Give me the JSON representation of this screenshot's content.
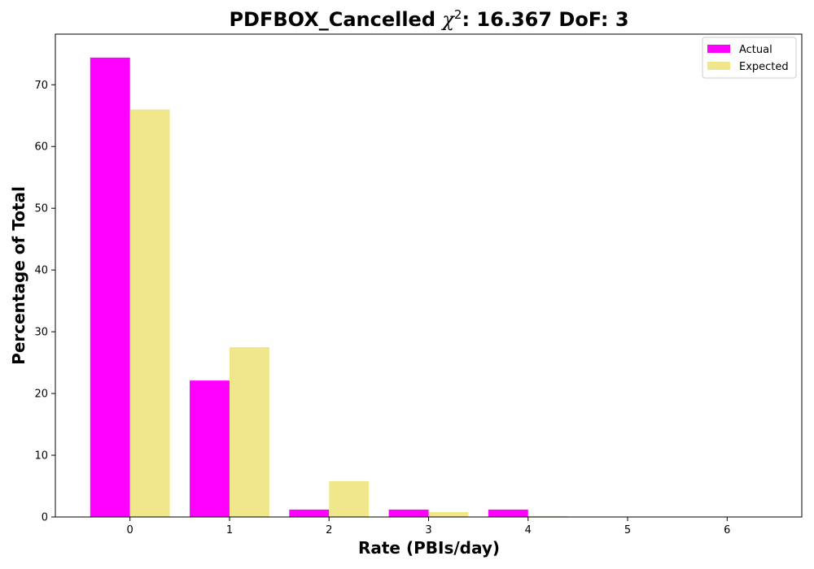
{
  "chart_data": {
    "type": "bar",
    "title_prefix": "PDFBOX_Cancelled ",
    "title_chi": "χ",
    "title_sup": "2",
    "title_suffix": ": 16.367 DoF: 3",
    "xlabel": "Rate (PBIs/day)",
    "ylabel": "Percentage of Total",
    "categories": [
      "0",
      "1",
      "2",
      "3",
      "4",
      "5",
      "6"
    ],
    "series": [
      {
        "name": "Actual",
        "color": "#ff00ff",
        "values": [
          74.4,
          22.1,
          1.2,
          1.2,
          1.2,
          0.0,
          0.0
        ]
      },
      {
        "name": "Expected",
        "color": "#f0e68c",
        "values": [
          66.0,
          27.5,
          5.8,
          0.8,
          0.15,
          0.02,
          0.0
        ]
      }
    ],
    "yticks": [
      0,
      10,
      20,
      30,
      40,
      50,
      60,
      70
    ],
    "ylim": [
      0,
      78.2
    ],
    "xlim": [
      -0.75,
      6.75
    ],
    "grid": false,
    "legend_position": "top-right"
  }
}
